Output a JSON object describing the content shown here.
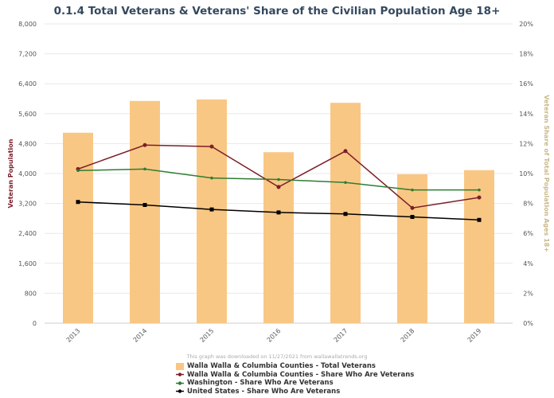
{
  "chart_data": {
    "type": "bar+line",
    "title": "0.1.4 Total Veterans & Veterans' Share of the Civilian Population Age 18+",
    "categories": [
      "2013",
      "2014",
      "2015",
      "2016",
      "2017",
      "2018",
      "2019"
    ],
    "ylabel_left": "Veteran Population",
    "ylabel_right": "Veteran Share of Total Population Ages 18+",
    "ylim_left": [
      0,
      8000
    ],
    "yticks_left": [
      "0",
      "800",
      "1,600",
      "2,400",
      "3,200",
      "4,000",
      "4,800",
      "5,600",
      "6,400",
      "7,200",
      "8,000"
    ],
    "ylim_right": [
      0,
      20
    ],
    "yticks_right": [
      "0%",
      "2%",
      "4%",
      "6%",
      "8%",
      "10%",
      "12%",
      "14%",
      "16%",
      "18%",
      "20%"
    ],
    "grid": true,
    "legend_position": "bottom",
    "series": [
      {
        "name": "Walla Walla & Columbia Counties - Total Veterans",
        "type": "bar",
        "axis": "left",
        "color": "#f9c784",
        "values": [
          5090,
          5940,
          5980,
          4570,
          5890,
          3980,
          4090
        ]
      },
      {
        "name": "Walla Walla & Columbia Counties - Share Who Are Veterans",
        "type": "line",
        "axis": "right",
        "color": "#7b1f2a",
        "values": [
          10.3,
          11.9,
          11.8,
          9.1,
          11.5,
          7.7,
          8.4
        ]
      },
      {
        "name": "Washington - Share Who Are Veterans",
        "type": "line",
        "axis": "right",
        "color": "#2e7d32",
        "values": [
          10.2,
          10.3,
          9.7,
          9.6,
          9.4,
          8.9,
          8.9
        ]
      },
      {
        "name": "United States - Share Who Are Veterans",
        "type": "line",
        "axis": "right",
        "color": "#000000",
        "values": [
          8.1,
          7.9,
          7.6,
          7.4,
          7.3,
          7.1,
          6.9
        ]
      }
    ]
  },
  "credit": "This graph was downloaded on 11/27/2021 from wallawallatrends.org"
}
